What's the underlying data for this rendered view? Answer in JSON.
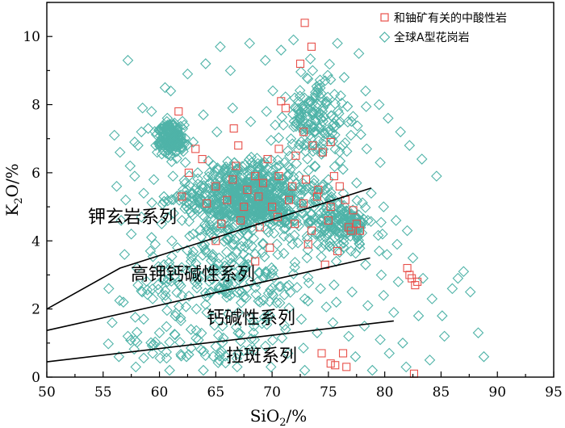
{
  "chart_data": {
    "type": "scatter",
    "title": "",
    "xlabel": "SiO2/%",
    "xlabel_main": "SiO",
    "xlabel_sub": "2",
    "xlabel_tail": "/%",
    "ylabel": "K2O/%",
    "ylabel_main": "K",
    "ylabel_sub": "2",
    "ylabel_tail": "O/%",
    "xlim": [
      50,
      95
    ],
    "ylim": [
      0,
      11
    ],
    "xticks": [
      "50",
      "55",
      "60",
      "65",
      "70",
      "75",
      "80",
      "85",
      "90",
      "95"
    ],
    "yticks": [
      "0",
      "2",
      "4",
      "6",
      "8",
      "10"
    ],
    "legend_position": "top-right",
    "colors": {
      "uranium_related": "#e8504a",
      "global_a_type": "#4fb3a8",
      "boundary": "#000000"
    },
    "series": [
      {
        "name": "和铀矿有关的中酸性岩",
        "marker": "square",
        "points": [
          [
            72.9,
            10.4
          ],
          [
            73.5,
            9.7
          ],
          [
            72.5,
            9.2
          ],
          [
            70.8,
            8.1
          ],
          [
            71.2,
            7.9
          ],
          [
            61.7,
            7.8
          ],
          [
            66.6,
            7.3
          ],
          [
            72.8,
            7.2
          ],
          [
            67.0,
            6.8
          ],
          [
            63.2,
            6.7
          ],
          [
            70.6,
            6.7
          ],
          [
            73.6,
            6.8
          ],
          [
            75.2,
            6.9
          ],
          [
            63.8,
            6.4
          ],
          [
            66.8,
            6.2
          ],
          [
            69.6,
            6.4
          ],
          [
            72.1,
            6.5
          ],
          [
            74.5,
            6.6
          ],
          [
            65.0,
            5.6
          ],
          [
            66.5,
            5.8
          ],
          [
            67.8,
            5.5
          ],
          [
            68.5,
            5.9
          ],
          [
            69.2,
            5.7
          ],
          [
            70.6,
            5.9
          ],
          [
            71.8,
            5.6
          ],
          [
            73.0,
            5.8
          ],
          [
            74.1,
            5.5
          ],
          [
            75.5,
            5.9
          ],
          [
            76.0,
            5.6
          ],
          [
            64.2,
            5.1
          ],
          [
            66.0,
            5.2
          ],
          [
            67.5,
            5.0
          ],
          [
            68.8,
            5.3
          ],
          [
            70.0,
            5.0
          ],
          [
            71.5,
            5.2
          ],
          [
            72.8,
            5.1
          ],
          [
            74.0,
            5.3
          ],
          [
            75.2,
            5.0
          ],
          [
            76.5,
            5.2
          ],
          [
            77.2,
            4.9
          ],
          [
            65.5,
            4.5
          ],
          [
            67.2,
            4.6
          ],
          [
            68.9,
            4.4
          ],
          [
            70.5,
            4.7
          ],
          [
            72.0,
            4.5
          ],
          [
            73.5,
            4.3
          ],
          [
            75.0,
            4.6
          ],
          [
            76.8,
            4.4
          ],
          [
            77.8,
            4.3
          ],
          [
            65.0,
            4.0
          ],
          [
            69.8,
            3.8
          ],
          [
            73.2,
            3.9
          ],
          [
            75.8,
            3.7
          ],
          [
            68.5,
            3.4
          ],
          [
            74.7,
            3.3
          ],
          [
            82.0,
            3.2
          ],
          [
            82.2,
            3.0
          ],
          [
            82.4,
            2.9
          ],
          [
            82.9,
            2.8
          ],
          [
            82.7,
            2.7
          ],
          [
            74.4,
            0.7
          ],
          [
            76.3,
            0.7
          ],
          [
            76.6,
            0.3
          ],
          [
            75.2,
            0.4
          ],
          [
            75.6,
            0.35
          ],
          [
            82.6,
            0.1
          ],
          [
            62.0,
            5.3
          ],
          [
            62.6,
            6.0
          ],
          [
            77.0,
            4.3
          ],
          [
            77.5,
            4.5
          ]
        ]
      },
      {
        "name": "全球A型花岗岩",
        "marker": "diamond",
        "points": [
          [
            57.2,
            9.3
          ],
          [
            58.5,
            7.9
          ],
          [
            59.3,
            7.8
          ],
          [
            60.5,
            8.5
          ],
          [
            61.0,
            8.4
          ],
          [
            62.5,
            8.9
          ],
          [
            64.1,
            9.2
          ],
          [
            65.4,
            9.7
          ],
          [
            66.3,
            9.0
          ],
          [
            68.0,
            9.8
          ],
          [
            69.4,
            9.3
          ],
          [
            70.8,
            9.6
          ],
          [
            71.9,
            9.9
          ],
          [
            73.6,
            9.0
          ],
          [
            74.7,
            8.7
          ],
          [
            75.8,
            9.8
          ],
          [
            76.4,
            8.8
          ],
          [
            77.7,
            9.5
          ],
          [
            78.3,
            8.4
          ],
          [
            79.5,
            8.0
          ],
          [
            80.3,
            7.6
          ],
          [
            81.4,
            7.2
          ],
          [
            82.2,
            6.8
          ],
          [
            83.3,
            6.4
          ],
          [
            84.6,
            5.9
          ],
          [
            56.0,
            7.1
          ],
          [
            56.5,
            6.6
          ],
          [
            57.4,
            6.2
          ],
          [
            58.1,
            6.8
          ],
          [
            59.0,
            7.3
          ],
          [
            60.0,
            6.9
          ],
          [
            60.7,
            7.6
          ],
          [
            61.4,
            7.0
          ],
          [
            62.2,
            7.4
          ],
          [
            63.0,
            6.9
          ],
          [
            63.9,
            7.7
          ],
          [
            65.1,
            7.2
          ],
          [
            66.5,
            7.9
          ],
          [
            68.1,
            7.5
          ],
          [
            69.5,
            7.8
          ],
          [
            71.0,
            7.4
          ],
          [
            72.6,
            7.7
          ],
          [
            74.2,
            7.3
          ],
          [
            75.5,
            7.6
          ],
          [
            77.0,
            7.1
          ],
          [
            78.4,
            6.7
          ],
          [
            79.6,
            6.3
          ],
          [
            56.2,
            5.6
          ],
          [
            57.0,
            5.2
          ],
          [
            57.8,
            5.9
          ],
          [
            58.6,
            5.4
          ],
          [
            59.5,
            5.8
          ],
          [
            60.4,
            5.3
          ],
          [
            61.2,
            5.9
          ],
          [
            62.1,
            5.5
          ],
          [
            63.4,
            6.0
          ],
          [
            64.5,
            5.7
          ],
          [
            65.8,
            6.1
          ],
          [
            67.0,
            5.8
          ],
          [
            68.3,
            6.2
          ],
          [
            69.7,
            5.9
          ],
          [
            71.1,
            6.3
          ],
          [
            72.4,
            5.9
          ],
          [
            73.8,
            6.2
          ],
          [
            75.0,
            5.8
          ],
          [
            76.3,
            6.1
          ],
          [
            77.5,
            5.7
          ],
          [
            78.8,
            5.4
          ],
          [
            79.9,
            5.0
          ],
          [
            81.0,
            4.6
          ],
          [
            82.0,
            4.3
          ],
          [
            56.6,
            4.6
          ],
          [
            57.5,
            4.2
          ],
          [
            58.4,
            4.7
          ],
          [
            59.3,
            4.1
          ],
          [
            60.2,
            4.5
          ],
          [
            61.1,
            4.0
          ],
          [
            62.0,
            4.6
          ],
          [
            63.0,
            4.2
          ],
          [
            64.0,
            4.7
          ],
          [
            65.1,
            4.3
          ],
          [
            66.2,
            4.8
          ],
          [
            67.4,
            4.4
          ],
          [
            68.6,
            4.9
          ],
          [
            69.8,
            4.5
          ],
          [
            71.0,
            4.9
          ],
          [
            72.2,
            4.5
          ],
          [
            73.5,
            4.8
          ],
          [
            74.7,
            4.4
          ],
          [
            76.0,
            4.7
          ],
          [
            77.2,
            4.3
          ],
          [
            78.5,
            4.6
          ],
          [
            79.8,
            4.2
          ],
          [
            81.1,
            3.9
          ],
          [
            82.5,
            3.5
          ],
          [
            56.9,
            3.6
          ],
          [
            58.0,
            3.2
          ],
          [
            59.2,
            3.7
          ],
          [
            60.4,
            3.3
          ],
          [
            61.6,
            3.8
          ],
          [
            62.8,
            3.4
          ],
          [
            64.0,
            3.9
          ],
          [
            65.3,
            3.5
          ],
          [
            66.6,
            3.9
          ],
          [
            67.9,
            3.5
          ],
          [
            69.2,
            3.9
          ],
          [
            70.5,
            3.6
          ],
          [
            71.8,
            3.9
          ],
          [
            73.1,
            3.5
          ],
          [
            74.4,
            3.8
          ],
          [
            75.7,
            3.4
          ],
          [
            77.0,
            3.7
          ],
          [
            78.3,
            3.3
          ],
          [
            79.7,
            3.0
          ],
          [
            55.5,
            2.6
          ],
          [
            56.8,
            2.2
          ],
          [
            58.1,
            2.7
          ],
          [
            59.4,
            2.3
          ],
          [
            60.7,
            2.8
          ],
          [
            62.0,
            2.4
          ],
          [
            63.3,
            2.9
          ],
          [
            64.6,
            2.5
          ],
          [
            66.0,
            2.9
          ],
          [
            67.3,
            2.5
          ],
          [
            68.7,
            2.8
          ],
          [
            70.1,
            2.4
          ],
          [
            71.5,
            2.7
          ],
          [
            72.9,
            2.3
          ],
          [
            74.3,
            2.6
          ],
          [
            75.7,
            2.2
          ],
          [
            77.1,
            2.5
          ],
          [
            78.5,
            2.1
          ],
          [
            79.9,
            2.4
          ],
          [
            55.8,
            1.6
          ],
          [
            57.2,
            1.2
          ],
          [
            58.6,
            1.7
          ],
          [
            60.0,
            1.3
          ],
          [
            61.4,
            1.8
          ],
          [
            62.8,
            1.4
          ],
          [
            64.2,
            1.9
          ],
          [
            65.6,
            1.5
          ],
          [
            67.0,
            1.9
          ],
          [
            68.4,
            1.5
          ],
          [
            69.8,
            1.8
          ],
          [
            71.2,
            1.4
          ],
          [
            72.6,
            1.7
          ],
          [
            74.0,
            1.3
          ],
          [
            75.4,
            1.6
          ],
          [
            76.8,
            1.2
          ],
          [
            78.2,
            1.5
          ],
          [
            79.6,
            1.1
          ],
          [
            56.4,
            0.6
          ],
          [
            57.9,
            0.3
          ],
          [
            59.4,
            0.7
          ],
          [
            60.9,
            0.2
          ],
          [
            62.4,
            0.6
          ],
          [
            63.9,
            0.2
          ],
          [
            65.4,
            0.7
          ],
          [
            66.9,
            0.3
          ],
          [
            68.4,
            0.8
          ],
          [
            69.9,
            0.3
          ],
          [
            71.4,
            0.7
          ],
          [
            72.9,
            0.2
          ],
          [
            77.4,
            0.6
          ],
          [
            78.9,
            0.2
          ],
          [
            80.4,
            0.7
          ],
          [
            81.9,
            0.3
          ],
          [
            83.4,
            2.9
          ],
          [
            84.2,
            2.3
          ],
          [
            85.1,
            1.8
          ],
          [
            86.0,
            2.6
          ],
          [
            87.0,
            3.1
          ],
          [
            87.6,
            2.5
          ],
          [
            88.3,
            1.3
          ],
          [
            88.8,
            0.6
          ],
          [
            85.3,
            1.2
          ],
          [
            84.0,
            0.5
          ],
          [
            83.0,
            1.8
          ],
          [
            86.5,
            2.9
          ],
          [
            80.8,
            1.9
          ],
          [
            81.6,
            1.0
          ],
          [
            80.2,
            3.6
          ],
          [
            81.2,
            2.8
          ],
          [
            60.6,
            7.2
          ],
          [
            61.0,
            6.5
          ],
          [
            61.6,
            6.8
          ],
          [
            60.2,
            7.3
          ],
          [
            59.8,
            6.6
          ],
          [
            61.9,
            7.1
          ],
          [
            62.3,
            6.3
          ],
          [
            57.8,
            6.9
          ],
          [
            58.4,
            7.2
          ]
        ]
      }
    ],
    "boundaries": [
      {
        "label": "钾玄岩系列",
        "points": [
          [
            50,
            2.0
          ],
          [
            56.5,
            3.2
          ],
          [
            78.8,
            5.55
          ]
        ]
      },
      {
        "label": "高钾钙碱性系列",
        "points": [
          [
            50,
            1.37
          ],
          [
            78.7,
            3.5
          ]
        ]
      },
      {
        "label": "钙碱性系列",
        "points": [
          [
            50,
            0.45
          ],
          [
            80.8,
            1.65
          ]
        ]
      },
      {
        "label": "拉斑系列",
        "points": []
      }
    ],
    "field_labels": [
      "钾玄岩系列",
      "高钾钙碱性系列",
      "钙碱性系列",
      "拉斑系列"
    ]
  }
}
